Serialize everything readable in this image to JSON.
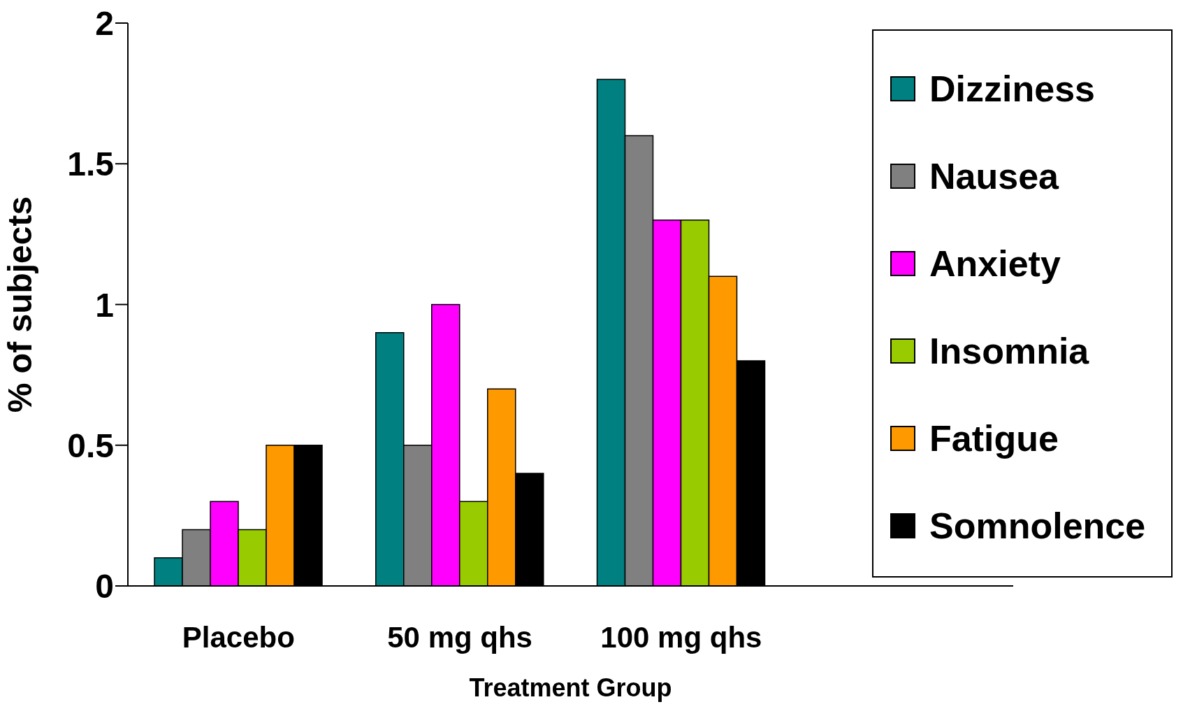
{
  "chart_data": {
    "type": "bar",
    "xlabel": "Treatment Group",
    "ylabel": "% of subjects",
    "categories": [
      "Placebo",
      "50 mg qhs",
      "100 mg qhs",
      null
    ],
    "series": [
      {
        "name": "Dizziness",
        "color": "#008080",
        "values": [
          0.1,
          0.9,
          1.8,
          null
        ]
      },
      {
        "name": "Nausea",
        "color": "#808080",
        "values": [
          0.2,
          0.5,
          1.6,
          null
        ]
      },
      {
        "name": "Anxiety",
        "color": "#ff00ff",
        "values": [
          0.3,
          1.0,
          1.3,
          null
        ]
      },
      {
        "name": "Insomnia",
        "color": "#99cc00",
        "values": [
          0.2,
          0.3,
          1.3,
          null
        ]
      },
      {
        "name": "Fatigue",
        "color": "#ff9900",
        "values": [
          0.5,
          0.7,
          1.1,
          null
        ]
      },
      {
        "name": "Somnolence",
        "color": "#000000",
        "values": [
          0.5,
          0.4,
          0.8,
          null
        ]
      }
    ],
    "ylim": [
      0,
      2
    ],
    "yticks": [
      0,
      0.5,
      1,
      1.5,
      2
    ],
    "grid": false,
    "legend": "right"
  }
}
